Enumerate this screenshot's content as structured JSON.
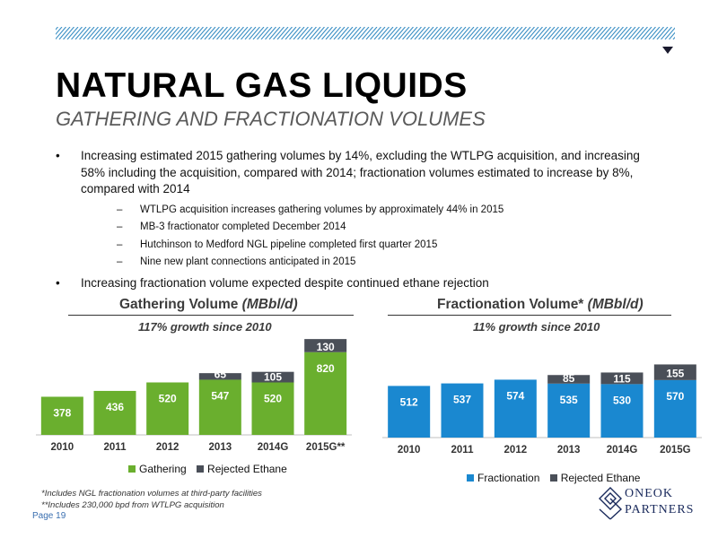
{
  "header": {
    "title": "NATURAL GAS LIQUIDS",
    "subtitle": "GATHERING AND FRACTIONATION VOLUMES"
  },
  "bullets": [
    "Increasing estimated 2015 gathering volumes by 14%, excluding the WTLPG acquisition, and increasing 58% including the acquisition, compared with 2014; fractionation volumes estimated to increase by 8%, compared with 2014",
    "Increasing fractionation volume expected despite continued ethane rejection"
  ],
  "sub_bullets": [
    "WTLPG acquisition increases gathering volumes by approximately 44% in 2015",
    "MB-3 fractionator completed December 2014",
    "Hutchinson to Medford NGL pipeline completed first quarter 2015",
    "Nine new plant connections anticipated in 2015"
  ],
  "bullet_glyph": "•",
  "dash_glyph": "–",
  "colors": {
    "gathering": "#6aaf2e",
    "fractionation": "#1a88d0",
    "ethane": "#4a4f58",
    "hatch": "#3a8fc4",
    "page_number": "#3a6fb0"
  },
  "chart_data": [
    {
      "type": "bar",
      "stacked": true,
      "title": "Gathering Volume",
      "title_unit": "(MBbl/d)",
      "annotation": "117% growth since 2010",
      "categories": [
        "2010",
        "2011",
        "2012",
        "2013",
        "2014G",
        "2015G**"
      ],
      "series": [
        {
          "name": "Gathering",
          "values": [
            378,
            436,
            520,
            547,
            520,
            820
          ]
        },
        {
          "name": "Rejected Ethane",
          "values": [
            null,
            null,
            null,
            65,
            105,
            130
          ]
        }
      ],
      "legend": "bottom"
    },
    {
      "type": "bar",
      "stacked": true,
      "title": "Fractionation Volume*",
      "title_unit": "(MBbl/d)",
      "annotation": "11% growth since 2010",
      "categories": [
        "2010",
        "2011",
        "2012",
        "2013",
        "2014G",
        "2015G"
      ],
      "series": [
        {
          "name": "Fractionation",
          "values": [
            512,
            537,
            574,
            535,
            530,
            570
          ]
        },
        {
          "name": "Rejected Ethane",
          "values": [
            null,
            null,
            null,
            85,
            115,
            155
          ]
        }
      ],
      "legend": "bottom"
    }
  ],
  "footnotes": [
    "*Includes NGL fractionation volumes at third-party facilities",
    "**Includes 230,000 bpd from WTLPG acquisition"
  ],
  "page_label": "Page 19",
  "logo": {
    "line1": "ONEOK",
    "line2": "PARTNERS"
  }
}
